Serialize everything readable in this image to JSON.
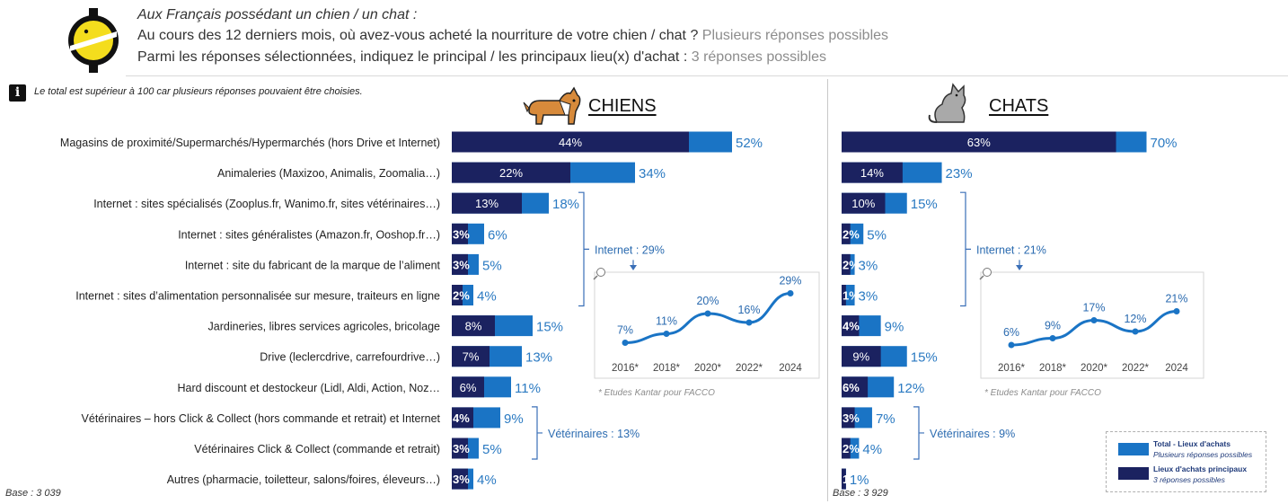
{
  "header": {
    "question_line1": "Aux Français possédant un chien / un chat :",
    "question_line2": "Au cours des 12 derniers mois, où avez-vous acheté la nourriture de votre chien / chat ?",
    "question_line2_note": "Plusieurs réponses possibles",
    "question_line3": "Parmi les réponses sélectionnées, indiquez le principal / les principaux lieu(x) d'achat :",
    "question_line3_note": "3 réponses possibles"
  },
  "info_note": "Le total est supérieur à 100 car plusieurs réponses pouvaient être choisies.",
  "info_icon_letter": "i",
  "legend": {
    "total_title": "Total - Lieux d'achats",
    "total_sub": "Plusieurs réponses possibles",
    "main_title": "Lieux d'achats principaux",
    "main_sub": "3 réponses possibles"
  },
  "colors": {
    "main": "#1b2260",
    "total": "#1a74c5",
    "label_total": "#2b7ac2",
    "line": "#1a74c5"
  },
  "chart_data": [
    {
      "type": "bar",
      "title": "CHIENS",
      "base": "Base : 3 039",
      "categories": [
        "Magasins de proximité/Supermarchés/Hypermarchés (hors Drive et Internet)",
        "Animaleries (Maxizoo, Animalis, Zoomalia…)",
        "Internet : sites spécialisés (Zooplus.fr, Wanimo.fr, sites vétérinaires…)",
        "Internet : sites généralistes (Amazon.fr, Ooshop.fr…)",
        "Internet : site du fabricant de la marque de l’aliment",
        "Internet : sites d’alimentation personnalisée sur mesure, traiteurs en ligne",
        "Jardineries, libres services agricoles, bricolage",
        "Drive (leclercdrive, carrefourdrive…)",
        "Hard discount et destockeur (Lidl, Aldi, Action, Noz…",
        "Vétérinaires – hors Click & Collect (hors commande et retrait) et Internet",
        "Vétérinaires Click & Collect (commande et retrait)",
        "Autres (pharmacie, toiletteur, salons/foires, éleveurs…)"
      ],
      "series": [
        {
          "name": "Lieux d'achats principaux",
          "values": [
            44,
            22,
            13,
            3,
            3,
            2,
            8,
            7,
            6,
            4,
            3,
            3
          ]
        },
        {
          "name": "Total - Lieux d'achats",
          "values": [
            52,
            34,
            18,
            6,
            5,
            4,
            15,
            13,
            11,
            9,
            5,
            4
          ]
        }
      ],
      "groups": [
        {
          "label": "Internet : 29%",
          "rows": [
            2,
            5
          ]
        },
        {
          "label": "Vétérinaires : 13%",
          "rows": [
            9,
            10
          ]
        }
      ],
      "inset": {
        "type": "line",
        "x": [
          "2016*",
          "2018*",
          "2020*",
          "2022*",
          "2024"
        ],
        "values": [
          7,
          11,
          20,
          16,
          29
        ],
        "source": "* Etudes Kantar pour FACCO"
      }
    },
    {
      "type": "bar",
      "title": "CHATS",
      "base": "Base : 3 929",
      "series": [
        {
          "name": "Lieux d'achats principaux",
          "values": [
            63,
            14,
            10,
            2,
            2,
            1,
            4,
            9,
            6,
            3,
            2,
            1
          ]
        },
        {
          "name": "Total - Lieux d'achats",
          "values": [
            70,
            23,
            15,
            5,
            3,
            3,
            9,
            15,
            12,
            7,
            4,
            1
          ]
        }
      ],
      "groups": [
        {
          "label": "Internet : 21%",
          "rows": [
            2,
            5
          ]
        },
        {
          "label": "Vétérinaires : 9%",
          "rows": [
            9,
            10
          ]
        }
      ],
      "inset": {
        "type": "line",
        "x": [
          "2016*",
          "2018*",
          "2020*",
          "2022*",
          "2024"
        ],
        "values": [
          6,
          9,
          17,
          12,
          21
        ],
        "source": "* Etudes Kantar pour FACCO"
      }
    }
  ]
}
